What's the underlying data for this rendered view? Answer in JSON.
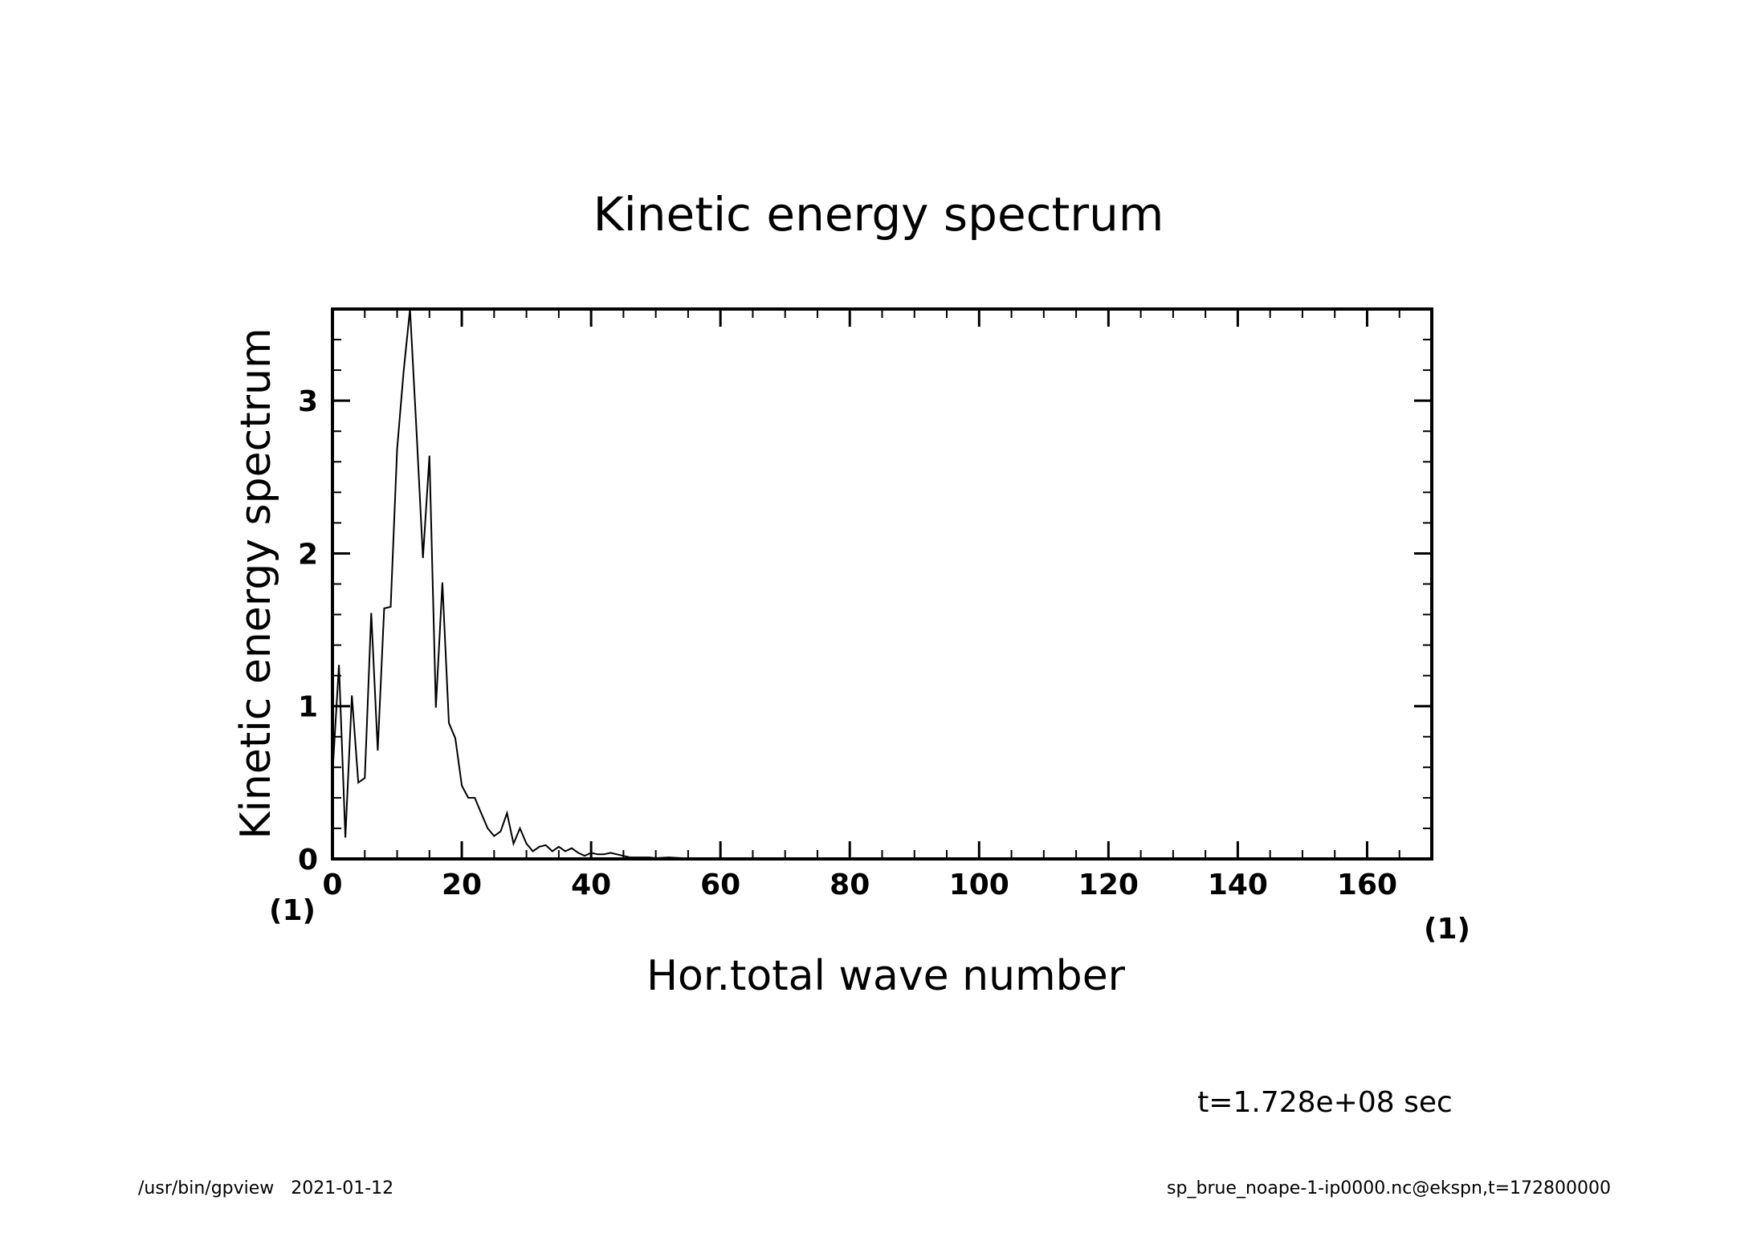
{
  "chart_data": {
    "type": "line",
    "title": "Kinetic energy spectrum",
    "xlabel": "Hor.total wave number",
    "ylabel": "Kinetic energy spectrum",
    "x_unit": "(1)",
    "y_unit": "(1)",
    "xlim": [
      0,
      170
    ],
    "ylim": [
      0,
      3.6
    ],
    "x_ticks": [
      0,
      20,
      40,
      60,
      80,
      100,
      120,
      140,
      160
    ],
    "y_ticks": [
      0,
      1,
      2,
      3
    ],
    "x_tick_labels": [
      "0",
      "20",
      "40",
      "60",
      "80",
      "100",
      "120",
      "140",
      "160"
    ],
    "y_tick_labels": [
      "0",
      "1",
      "2",
      "3"
    ],
    "grid": false,
    "line_color": "#000000",
    "series": [
      {
        "x": [
          0,
          1,
          2,
          3,
          4,
          5,
          6,
          7,
          8,
          9,
          10,
          11,
          12,
          13,
          14,
          15,
          16,
          17,
          18,
          19,
          20,
          21,
          22,
          23,
          24,
          25,
          26,
          27,
          28,
          29,
          30,
          31,
          32,
          33,
          34,
          35,
          36,
          37,
          38,
          39,
          40,
          41,
          42,
          43,
          44,
          45,
          46,
          47,
          48,
          49,
          50,
          52,
          54,
          56,
          58,
          60,
          65,
          70,
          80,
          100,
          120,
          140,
          160,
          170
        ],
        "y": [
          0.55,
          1.27,
          0.14,
          1.07,
          0.5,
          0.53,
          1.61,
          0.71,
          1.64,
          1.65,
          2.68,
          3.19,
          3.6,
          2.8,
          1.97,
          2.64,
          0.99,
          1.81,
          0.89,
          0.79,
          0.48,
          0.4,
          0.4,
          0.3,
          0.2,
          0.15,
          0.18,
          0.3,
          0.1,
          0.2,
          0.1,
          0.05,
          0.08,
          0.09,
          0.05,
          0.08,
          0.05,
          0.07,
          0.04,
          0.02,
          0.04,
          0.03,
          0.03,
          0.04,
          0.03,
          0.02,
          0.01,
          0.01,
          0.01,
          0.01,
          0.005,
          0.01,
          0.005,
          0.005,
          0.003,
          0.002,
          0.001,
          0.001,
          0.0,
          0.0,
          0.0,
          0.0,
          0.0,
          0.0
        ]
      }
    ]
  },
  "annotations": {
    "time_label": "t=1.728e+08 sec",
    "footer_left": "/usr/bin/gpview   2021-01-12",
    "footer_right": "sp_brue_noape-1-ip0000.nc@ekspn,t=172800000"
  }
}
